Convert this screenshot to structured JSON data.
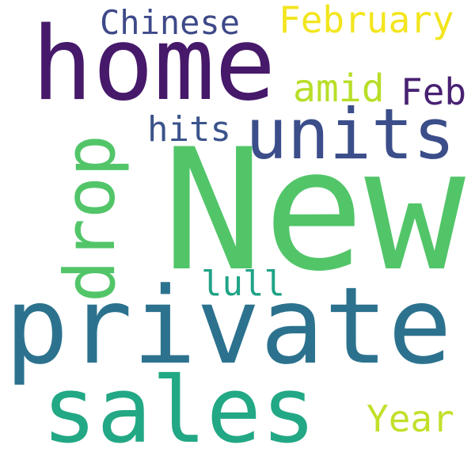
{
  "words": {
    "new": {
      "text": "New",
      "color": "#52c569"
    },
    "private": {
      "text": "private",
      "color": "#2c728e"
    },
    "home": {
      "text": "home",
      "color": "#46196a"
    },
    "sales": {
      "text": "sales",
      "color": "#22a884"
    },
    "units": {
      "text": "units",
      "color": "#3b4e8a"
    },
    "drop": {
      "text": "drop",
      "color": "#52c569"
    },
    "february": {
      "text": "February",
      "color": "#f3e51e"
    },
    "chinese": {
      "text": "Chinese",
      "color": "#3e4989"
    },
    "amid": {
      "text": "amid",
      "color": "#b8de29"
    },
    "feb": {
      "text": "Feb",
      "color": "#482173"
    },
    "hits": {
      "text": "hits",
      "color": "#3a538b"
    },
    "lull": {
      "text": "lull",
      "color": "#20a386"
    },
    "year": {
      "text": "Year",
      "color": "#c3df2a"
    }
  }
}
